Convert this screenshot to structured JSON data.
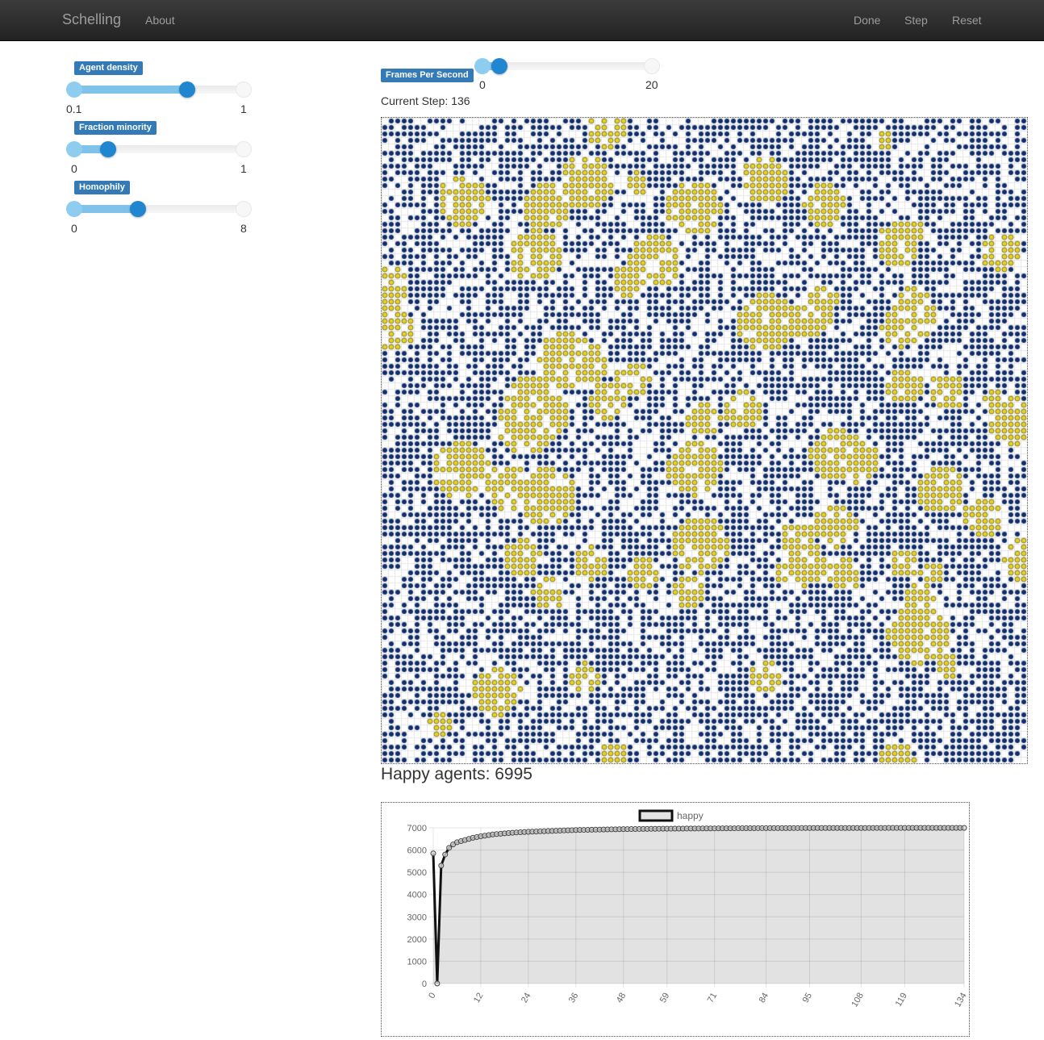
{
  "navbar": {
    "brand": "Schelling",
    "about": "About",
    "done": "Done",
    "step": "Step",
    "reset": "Reset"
  },
  "params": [
    {
      "label": "Agent density",
      "min": "0.1",
      "max": "1",
      "value": 0.7
    },
    {
      "label": "Fraction minority",
      "min": "0",
      "max": "1",
      "value": 0.2
    },
    {
      "label": "Homophily",
      "min": "0",
      "max": "8",
      "value": 3
    }
  ],
  "fps": {
    "label": "Frames Per Second",
    "min": "0",
    "max": "20",
    "value": 2
  },
  "status": {
    "current_step": "Current Step: 136",
    "happy_agents": "Happy agents: 6995"
  },
  "colors": {
    "majority": "#112e6b",
    "minority": "#e6d223",
    "minority_stroke": "#6b6010",
    "grid_line": "#e6e6e6"
  },
  "chart_data": {
    "type": "line",
    "legend": [
      "happy"
    ],
    "ylim": [
      0,
      7000
    ],
    "yticks": [
      0,
      1000,
      2000,
      3000,
      4000,
      5000,
      6000,
      7000
    ],
    "xticks": [
      "0",
      "12",
      "24",
      "36",
      "48",
      "59",
      "71",
      "84",
      "95",
      "108",
      "119",
      "134"
    ],
    "series": [
      {
        "name": "happy",
        "x": [
          0,
          1,
          2,
          3,
          4,
          5,
          6,
          8,
          10,
          12,
          15,
          18,
          21,
          24,
          30,
          36,
          42,
          48,
          59,
          71,
          84,
          95,
          108,
          119,
          134
        ],
        "y": [
          5850,
          0,
          5300,
          5800,
          6100,
          6250,
          6350,
          6450,
          6550,
          6620,
          6700,
          6750,
          6790,
          6820,
          6860,
          6900,
          6920,
          6940,
          6960,
          6975,
          6985,
          6990,
          6992,
          6994,
          6995
        ]
      }
    ]
  }
}
